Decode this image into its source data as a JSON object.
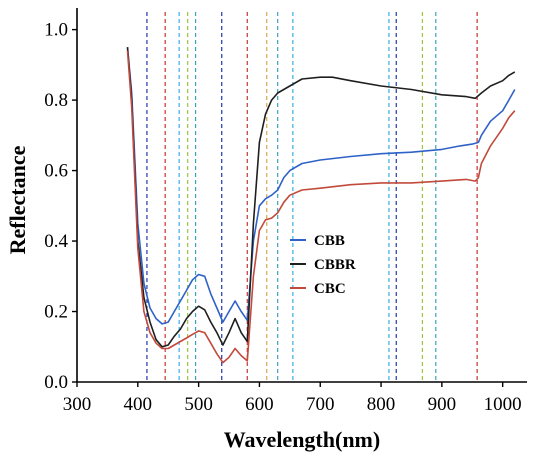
{
  "chart_data": {
    "type": "line",
    "xlabel": "Wavelength(nm)",
    "ylabel": "Reflectance",
    "xlim": [
      300,
      1040
    ],
    "ylim": [
      0,
      1.05
    ],
    "x_ticks": [
      300,
      400,
      500,
      600,
      700,
      800,
      900,
      1000
    ],
    "y_ticks": [
      0.0,
      0.2,
      0.4,
      0.6,
      0.8,
      1.0
    ],
    "x_tick_labels": [
      "300",
      "400",
      "500",
      "600",
      "700",
      "800",
      "900",
      "1000"
    ],
    "y_tick_labels": [
      "0.0",
      "0.2",
      "0.4",
      "0.6",
      "0.8",
      "1.0"
    ],
    "grid": false,
    "legend_position": "center-right",
    "series": [
      {
        "name": "CBB",
        "color": "#2f62c8",
        "points": [
          [
            383,
            0.95
          ],
          [
            390,
            0.82
          ],
          [
            400,
            0.45
          ],
          [
            410,
            0.28
          ],
          [
            420,
            0.21
          ],
          [
            430,
            0.18
          ],
          [
            440,
            0.165
          ],
          [
            450,
            0.17
          ],
          [
            460,
            0.2
          ],
          [
            470,
            0.23
          ],
          [
            480,
            0.26
          ],
          [
            490,
            0.29
          ],
          [
            500,
            0.305
          ],
          [
            510,
            0.3
          ],
          [
            520,
            0.25
          ],
          [
            530,
            0.21
          ],
          [
            540,
            0.17
          ],
          [
            550,
            0.2
          ],
          [
            560,
            0.23
          ],
          [
            570,
            0.2
          ],
          [
            580,
            0.175
          ],
          [
            590,
            0.4
          ],
          [
            600,
            0.5
          ],
          [
            610,
            0.52
          ],
          [
            620,
            0.53
          ],
          [
            630,
            0.545
          ],
          [
            640,
            0.58
          ],
          [
            650,
            0.6
          ],
          [
            670,
            0.62
          ],
          [
            700,
            0.63
          ],
          [
            750,
            0.64
          ],
          [
            800,
            0.648
          ],
          [
            850,
            0.652
          ],
          [
            900,
            0.66
          ],
          [
            930,
            0.67
          ],
          [
            950,
            0.675
          ],
          [
            960,
            0.68
          ],
          [
            965,
            0.7
          ],
          [
            980,
            0.74
          ],
          [
            1000,
            0.77
          ],
          [
            1010,
            0.8
          ],
          [
            1020,
            0.83
          ]
        ]
      },
      {
        "name": "CBBR",
        "color": "#1f1f1f",
        "points": [
          [
            383,
            0.95
          ],
          [
            390,
            0.8
          ],
          [
            400,
            0.4
          ],
          [
            410,
            0.24
          ],
          [
            420,
            0.17
          ],
          [
            430,
            0.12
          ],
          [
            440,
            0.1
          ],
          [
            450,
            0.105
          ],
          [
            460,
            0.13
          ],
          [
            470,
            0.15
          ],
          [
            480,
            0.18
          ],
          [
            490,
            0.2
          ],
          [
            500,
            0.215
          ],
          [
            510,
            0.205
          ],
          [
            520,
            0.17
          ],
          [
            530,
            0.14
          ],
          [
            540,
            0.105
          ],
          [
            550,
            0.14
          ],
          [
            560,
            0.18
          ],
          [
            570,
            0.14
          ],
          [
            580,
            0.115
          ],
          [
            590,
            0.45
          ],
          [
            600,
            0.68
          ],
          [
            610,
            0.76
          ],
          [
            620,
            0.8
          ],
          [
            630,
            0.82
          ],
          [
            650,
            0.84
          ],
          [
            670,
            0.86
          ],
          [
            700,
            0.865
          ],
          [
            720,
            0.865
          ],
          [
            750,
            0.855
          ],
          [
            800,
            0.84
          ],
          [
            850,
            0.83
          ],
          [
            900,
            0.815
          ],
          [
            940,
            0.81
          ],
          [
            955,
            0.805
          ],
          [
            965,
            0.82
          ],
          [
            980,
            0.84
          ],
          [
            1000,
            0.855
          ],
          [
            1010,
            0.87
          ],
          [
            1020,
            0.88
          ]
        ]
      },
      {
        "name": "CBC",
        "color": "#c24a3c",
        "points": [
          [
            383,
            0.94
          ],
          [
            390,
            0.78
          ],
          [
            400,
            0.38
          ],
          [
            410,
            0.2
          ],
          [
            420,
            0.14
          ],
          [
            430,
            0.11
          ],
          [
            440,
            0.095
          ],
          [
            450,
            0.095
          ],
          [
            460,
            0.105
          ],
          [
            470,
            0.115
          ],
          [
            480,
            0.125
          ],
          [
            490,
            0.135
          ],
          [
            500,
            0.145
          ],
          [
            510,
            0.14
          ],
          [
            520,
            0.11
          ],
          [
            530,
            0.08
          ],
          [
            540,
            0.055
          ],
          [
            550,
            0.07
          ],
          [
            560,
            0.095
          ],
          [
            570,
            0.075
          ],
          [
            580,
            0.06
          ],
          [
            590,
            0.3
          ],
          [
            600,
            0.43
          ],
          [
            610,
            0.46
          ],
          [
            620,
            0.465
          ],
          [
            630,
            0.48
          ],
          [
            640,
            0.51
          ],
          [
            650,
            0.53
          ],
          [
            670,
            0.545
          ],
          [
            700,
            0.55
          ],
          [
            750,
            0.56
          ],
          [
            800,
            0.565
          ],
          [
            850,
            0.565
          ],
          [
            900,
            0.57
          ],
          [
            940,
            0.575
          ],
          [
            955,
            0.57
          ],
          [
            960,
            0.58
          ],
          [
            965,
            0.62
          ],
          [
            980,
            0.67
          ],
          [
            1000,
            0.72
          ],
          [
            1010,
            0.75
          ],
          [
            1020,
            0.77
          ]
        ]
      }
    ],
    "vertical_lines": [
      {
        "x": 415,
        "color": "#2238a8"
      },
      {
        "x": 445,
        "color": "#c8362e"
      },
      {
        "x": 468,
        "color": "#3aaee0"
      },
      {
        "x": 482,
        "color": "#9dc43a"
      },
      {
        "x": 495,
        "color": "#3aa3b8"
      },
      {
        "x": 538,
        "color": "#2238a8"
      },
      {
        "x": 580,
        "color": "#c8362e"
      },
      {
        "x": 612,
        "color": "#d8a650"
      },
      {
        "x": 630,
        "color": "#3aa3b8"
      },
      {
        "x": 655,
        "color": "#3aaee0"
      },
      {
        "x": 813,
        "color": "#3aaee0"
      },
      {
        "x": 825,
        "color": "#2238a8"
      },
      {
        "x": 868,
        "color": "#9dc43a"
      },
      {
        "x": 890,
        "color": "#3aa3b8"
      },
      {
        "x": 958,
        "color": "#c8362e"
      }
    ]
  }
}
